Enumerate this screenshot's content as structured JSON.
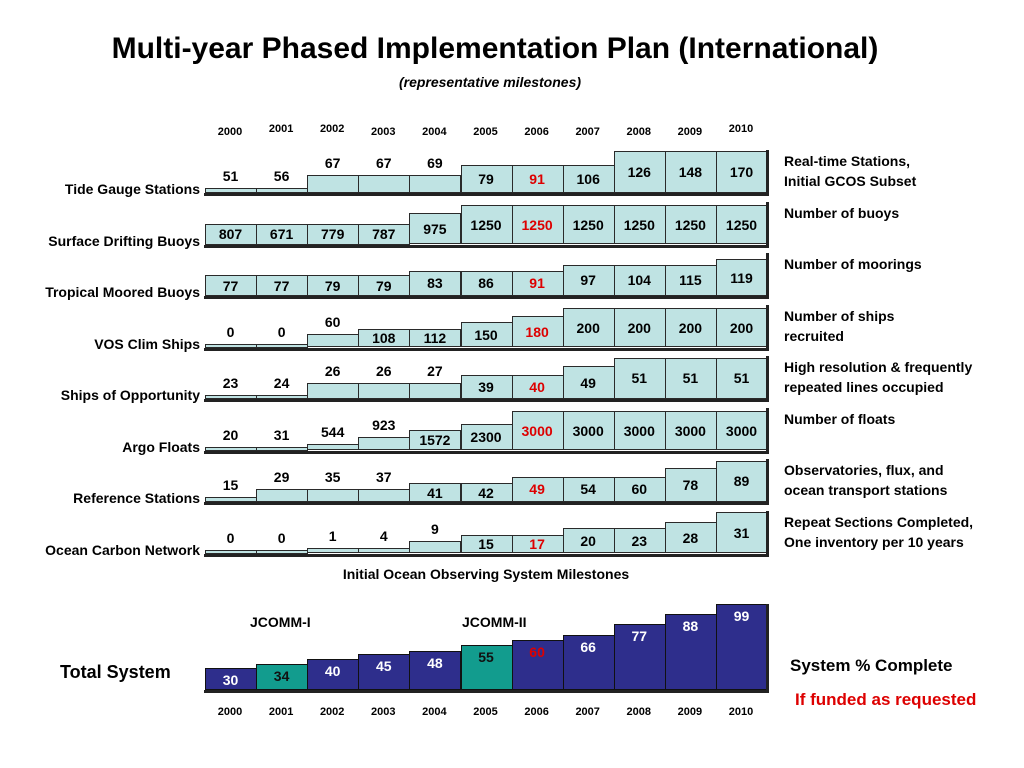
{
  "title": "Multi-year Phased Implementation Plan (International)",
  "subtitle": "(representative milestones)",
  "years": [
    "2000",
    "2001",
    "2002",
    "2003",
    "2004",
    "2005",
    "2006",
    "2007",
    "2008",
    "2009",
    "2010"
  ],
  "caption": "Initial Ocean Observing System Milestones",
  "chart_data": [
    {
      "type": "table",
      "title": "Initial Ocean Observing System Milestones",
      "categories": [
        "2000",
        "2001",
        "2002",
        "2003",
        "2004",
        "2005",
        "2006",
        "2007",
        "2008",
        "2009",
        "2010"
      ],
      "series": [
        {
          "name": "Tide Gauge Stations",
          "description": "Real-time Stations,\nInitial GCOS Subset",
          "values": [
            51,
            56,
            67,
            67,
            69,
            79,
            91,
            106,
            126,
            148,
            170
          ],
          "fill": [
            0.12,
            0.12,
            0.42,
            0.42,
            0.42,
            0.67,
            0.67,
            0.67,
            0.99,
            0.99,
            0.99
          ],
          "highlight": 6
        },
        {
          "name": "Surface Drifting Buoys",
          "description": "Number of buoys",
          "values": [
            807,
            671,
            779,
            787,
            975,
            1250,
            1250,
            1250,
            1250,
            1250,
            1250
          ],
          "fill": [
            0.5,
            0.5,
            0.5,
            0.5,
            0.76,
            0.93,
            0.93,
            0.93,
            0.93,
            0.93,
            0.93
          ],
          "highlight": 6
        },
        {
          "name": "Tropical Moored Buoys",
          "description": "Number of moorings",
          "values": [
            77,
            77,
            79,
            79,
            83,
            86,
            91,
            97,
            104,
            115,
            119
          ],
          "fill": [
            0.5,
            0.5,
            0.5,
            0.5,
            0.6,
            0.6,
            0.6,
            0.74,
            0.74,
            0.74,
            0.88
          ],
          "highlight": 6
        },
        {
          "name": "VOS Clim Ships",
          "description": "Number of ships\nrecruited",
          "values": [
            0,
            0,
            60,
            108,
            112,
            150,
            180,
            200,
            200,
            200,
            200
          ],
          "fill": [
            0.04,
            0.04,
            0.32,
            0.45,
            0.45,
            0.6,
            0.76,
            0.93,
            0.93,
            0.93,
            0.93
          ],
          "highlight": 6
        },
        {
          "name": "Ships of Opportunity",
          "description": "High resolution & frequently\nrepeated lines occupied",
          "values": [
            23,
            24,
            26,
            26,
            27,
            39,
            40,
            49,
            51,
            51,
            51
          ],
          "fill": [
            0.04,
            0.04,
            0.38,
            0.38,
            0.38,
            0.58,
            0.58,
            0.78,
            0.98,
            0.98,
            0.98
          ],
          "highlight": 6
        },
        {
          "name": "Argo Floats",
          "description": "Number of floats",
          "values": [
            20,
            31,
            544,
            923,
            1572,
            2300,
            3000,
            3000,
            3000,
            3000,
            3000
          ],
          "fill": [
            0.04,
            0.04,
            0.16,
            0.32,
            0.48,
            0.64,
            0.93,
            0.93,
            0.93,
            0.93,
            0.93
          ],
          "highlight": 6
        },
        {
          "name": "Reference Stations",
          "description": "Observatories, flux, and\nocean transport stations",
          "values": [
            15,
            29,
            35,
            37,
            41,
            42,
            49,
            54,
            60,
            78,
            89
          ],
          "fill": [
            0.12,
            0.32,
            0.32,
            0.32,
            0.45,
            0.45,
            0.6,
            0.6,
            0.6,
            0.8,
            0.98
          ],
          "highlight": 6
        },
        {
          "name": "Ocean Carbon Network",
          "description": "Repeat Sections Completed,\nOne inventory per 10 years",
          "values": [
            0,
            0,
            1,
            4,
            9,
            15,
            17,
            20,
            23,
            28,
            31
          ],
          "fill": [
            0.04,
            0.04,
            0.12,
            0.12,
            0.3,
            0.45,
            0.45,
            0.6,
            0.6,
            0.74,
            0.98
          ],
          "highlight": 6
        }
      ]
    },
    {
      "type": "bar",
      "title": "Total System",
      "categories": [
        "2000",
        "2001",
        "2002",
        "2003",
        "2004",
        "2005",
        "2006",
        "2007",
        "2008",
        "2009",
        "2010"
      ],
      "series": [
        {
          "name": "System % Complete",
          "values": [
            30,
            34,
            40,
            45,
            48,
            55,
            60,
            66,
            77,
            88,
            99
          ]
        }
      ],
      "ylim": [
        0,
        100
      ],
      "highlight_teal": [
        1,
        5
      ],
      "highlight_red": 6
    }
  ],
  "total": {
    "label": "Total System",
    "jcomm1": "JCOMM-I",
    "jcomm2": "JCOMM-II",
    "status": "System % Complete",
    "funded": "If funded as requested"
  },
  "colors": {
    "cell": "#bfe3e3",
    "navy": "#2e2e8c",
    "teal": "#129c8e",
    "red": "#dd0000"
  }
}
